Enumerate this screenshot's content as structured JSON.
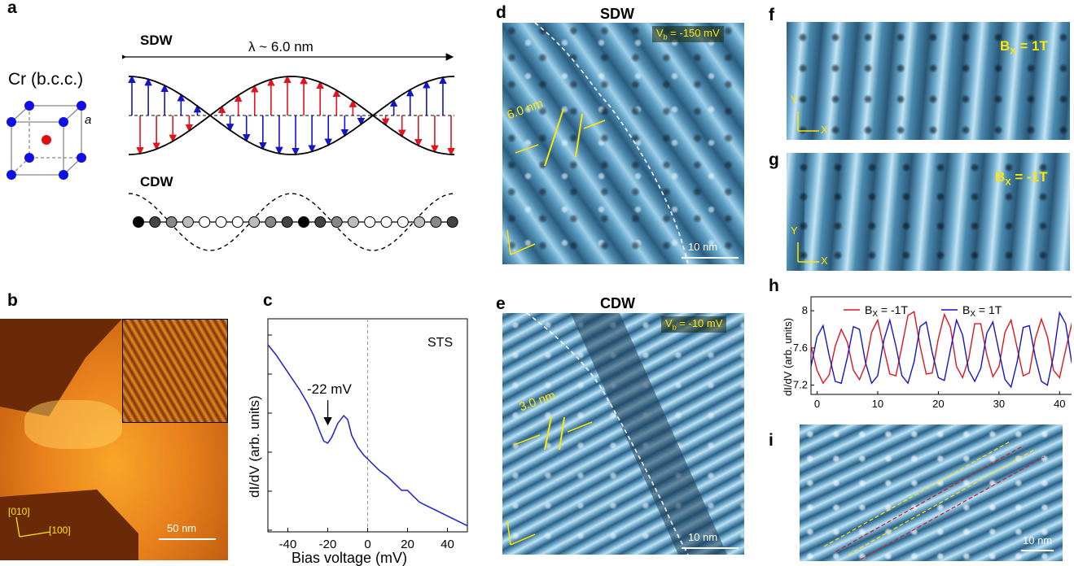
{
  "panels": {
    "a": {
      "label": "a",
      "crystal_label": "Cr (b.c.c.)",
      "lattice_param": "a",
      "sdw_label": "SDW",
      "cdw_label": "CDW",
      "wavelength": "λ ~ 6.0 nm"
    },
    "b": {
      "label": "b",
      "dir_010": "[010]",
      "dir_100": "[100]",
      "scale": "50 nm"
    },
    "c": {
      "label": "c",
      "tag": "STS",
      "annotation": "-22 mV",
      "ylabel": "dI/dV (arb. units)",
      "xlabel": "Bias voltage (mV)"
    },
    "d": {
      "label": "d",
      "title": "SDW",
      "bias": "V",
      "bias_sub": "b",
      "bias_val": " = -150 mV",
      "period": "6.0 nm",
      "scale": "10 nm"
    },
    "e": {
      "label": "e",
      "title": "CDW",
      "bias": "V",
      "bias_sub": "b",
      "bias_val": " = -10 mV",
      "period": "3.0 nm",
      "scale": "10 nm"
    },
    "f": {
      "label": "f",
      "field": "B",
      "field_sub": "X",
      "field_val": " = 1T",
      "axis_y": "Y",
      "axis_x": "X"
    },
    "g": {
      "label": "g",
      "field": "B",
      "field_sub": "X",
      "field_val": " = -1T",
      "axis_y": "Y",
      "axis_x": "X"
    },
    "h": {
      "label": "h"
    },
    "i": {
      "label": "i",
      "scale": "10 nm"
    }
  },
  "chart_data": [
    {
      "id": "c",
      "type": "line",
      "title": "STS",
      "xlabel": "Bias voltage (mV)",
      "ylabel": "dI/dV (arb. units)",
      "xlim": [
        -50,
        50
      ],
      "xticks": [
        -40,
        -20,
        0,
        20,
        40
      ],
      "series": [
        {
          "name": "STS",
          "color": "#1f1fd0",
          "x": [
            -50,
            -46,
            -42,
            -38,
            -34,
            -30,
            -27,
            -24,
            -22,
            -20,
            -18,
            -15,
            -12,
            -10,
            -8,
            -5,
            -2,
            0,
            3,
            6,
            10,
            14,
            17,
            20,
            23,
            26,
            30,
            34,
            38,
            42,
            46,
            50
          ],
          "y": [
            0.93,
            0.88,
            0.82,
            0.76,
            0.7,
            0.63,
            0.57,
            0.49,
            0.44,
            0.43,
            0.46,
            0.53,
            0.57,
            0.55,
            0.47,
            0.41,
            0.37,
            0.35,
            0.32,
            0.29,
            0.26,
            0.22,
            0.19,
            0.19,
            0.16,
            0.13,
            0.11,
            0.09,
            0.07,
            0.05,
            0.03,
            0.01
          ]
        }
      ],
      "annotation": {
        "text": "-22 mV",
        "x": -22
      }
    },
    {
      "id": "h",
      "type": "line",
      "xlabel": "",
      "ylabel": "dI/dV (arb. units)",
      "xlim": [
        -1,
        46
      ],
      "ylim": [
        7.1,
        8.15
      ],
      "xticks": [
        0,
        10,
        20,
        30,
        40
      ],
      "yticks": [
        7.2,
        7.6,
        8
      ],
      "legend": "top",
      "series": [
        {
          "name": "B",
          "sub": "X",
          "suffix": " = -1T",
          "color": "#e0141e",
          "x": [
            -1,
            0,
            1,
            2,
            3,
            4,
            5,
            6,
            7,
            8,
            9,
            10,
            11,
            12,
            13,
            14,
            15,
            16,
            17,
            18,
            19,
            20,
            21,
            22,
            23,
            24,
            25,
            26,
            27,
            28,
            29,
            30,
            31,
            32,
            33,
            34,
            35,
            36,
            37,
            38,
            39,
            40,
            41,
            42,
            43,
            44,
            45,
            46
          ],
          "y": [
            7.62,
            7.36,
            7.22,
            7.31,
            7.62,
            7.8,
            7.66,
            7.36,
            7.26,
            7.42,
            7.77,
            7.9,
            7.6,
            7.32,
            7.3,
            7.62,
            7.95,
            7.99,
            7.62,
            7.32,
            7.33,
            7.7,
            7.96,
            7.82,
            7.4,
            7.28,
            7.48,
            7.86,
            7.86,
            7.52,
            7.29,
            7.4,
            7.77,
            7.9,
            7.6,
            7.3,
            7.33,
            7.7,
            7.91,
            7.72,
            7.36,
            7.28,
            7.58,
            7.86,
            7.68,
            7.36,
            7.4,
            7.74
          ]
        },
        {
          "name": "B",
          "sub": "X",
          "suffix": " = 1T",
          "color": "#1414c8",
          "x": [
            -1,
            0,
            1,
            2,
            3,
            4,
            5,
            6,
            7,
            8,
            9,
            10,
            11,
            12,
            13,
            14,
            15,
            16,
            17,
            18,
            19,
            20,
            21,
            22,
            23,
            24,
            25,
            26,
            27,
            28,
            29,
            30,
            31,
            32,
            33,
            34,
            35,
            36,
            37,
            38,
            39,
            40,
            41,
            42,
            43,
            44,
            45,
            46
          ],
          "y": [
            7.4,
            7.72,
            7.84,
            7.52,
            7.24,
            7.22,
            7.5,
            7.83,
            7.8,
            7.44,
            7.22,
            7.3,
            7.68,
            7.9,
            7.62,
            7.3,
            7.22,
            7.45,
            7.83,
            7.88,
            7.55,
            7.28,
            7.25,
            7.58,
            7.9,
            7.74,
            7.36,
            7.24,
            7.38,
            7.76,
            7.88,
            7.56,
            7.26,
            7.18,
            7.45,
            7.82,
            7.84,
            7.5,
            7.24,
            7.2,
            7.52,
            7.98,
            7.86,
            7.44,
            7.24,
            7.38,
            7.6,
            7.82
          ]
        }
      ]
    }
  ]
}
